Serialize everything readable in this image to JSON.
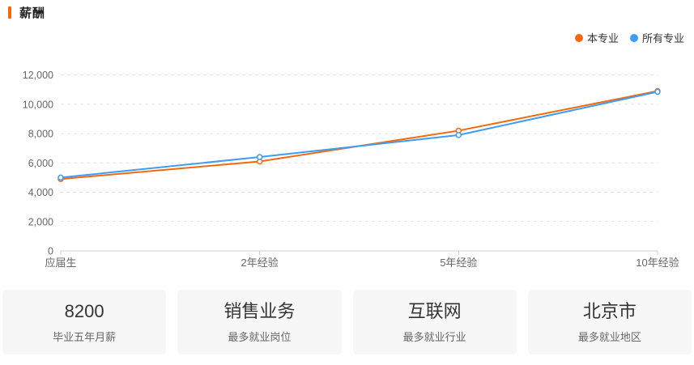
{
  "header": {
    "title": "薪酬",
    "accent_color": "#f5690c"
  },
  "legend": [
    {
      "label": "本专业",
      "color": "#f5690c"
    },
    {
      "label": "所有专业",
      "color": "#3e9cf5"
    }
  ],
  "chart_data": {
    "type": "line",
    "title": "薪酬",
    "categories": [
      "应届生",
      "2年经验",
      "5年经验",
      "10年经验"
    ],
    "series": [
      {
        "name": "本专业",
        "color": "#f5690c",
        "values": [
          4900,
          6100,
          8200,
          10900
        ]
      },
      {
        "name": "所有专业",
        "color": "#3e9cf5",
        "values": [
          5000,
          6400,
          7900,
          10850
        ]
      }
    ],
    "xlabel": "",
    "ylabel": "",
    "ylim": [
      0,
      12000
    ],
    "ytick_step": 2000,
    "ytick_labels": [
      "0",
      "2,000",
      "4,000",
      "6,000",
      "8,000",
      "10,000",
      "12,000"
    ],
    "grid": "dashed-horizontal",
    "legend_position": "top-right",
    "marker": "hollow-circle",
    "axis_color": "#cccccc",
    "grid_color": "#e2e2e2",
    "tick_label_color": "#666666"
  },
  "cards": [
    {
      "value": "8200",
      "label": "毕业五年月薪"
    },
    {
      "value": "销售业务",
      "label": "最多就业岗位"
    },
    {
      "value": "互联网",
      "label": "最多就业行业"
    },
    {
      "value": "北京市",
      "label": "最多就业地区"
    }
  ]
}
